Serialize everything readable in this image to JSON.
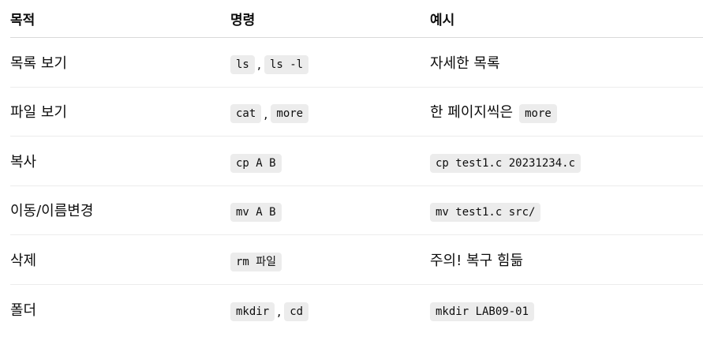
{
  "headers": [
    "목적",
    "명령",
    "예시"
  ],
  "rows": [
    {
      "purpose": "목록 보기",
      "commands": [
        "ls",
        "ls -l"
      ],
      "separator": ",",
      "example_text": "자세한 목록"
    },
    {
      "purpose": "파일 보기",
      "commands": [
        "cat",
        "more"
      ],
      "separator": ",",
      "example_text": "한 페이지씩은",
      "example_code": "more"
    },
    {
      "purpose": "복사",
      "commands": [
        "cp A B"
      ],
      "example_code": "cp test1.c 20231234.c"
    },
    {
      "purpose": "이동/이름변경",
      "commands": [
        "mv A B"
      ],
      "example_code": "mv test1.c src/"
    },
    {
      "purpose": "삭제",
      "commands": [
        "rm 파일"
      ],
      "example_text": "주의! 복구 힘듦"
    },
    {
      "purpose": "폴더",
      "commands": [
        "mkdir",
        "cd"
      ],
      "separator": ",",
      "example_code": "mkdir LAB09-01"
    }
  ]
}
